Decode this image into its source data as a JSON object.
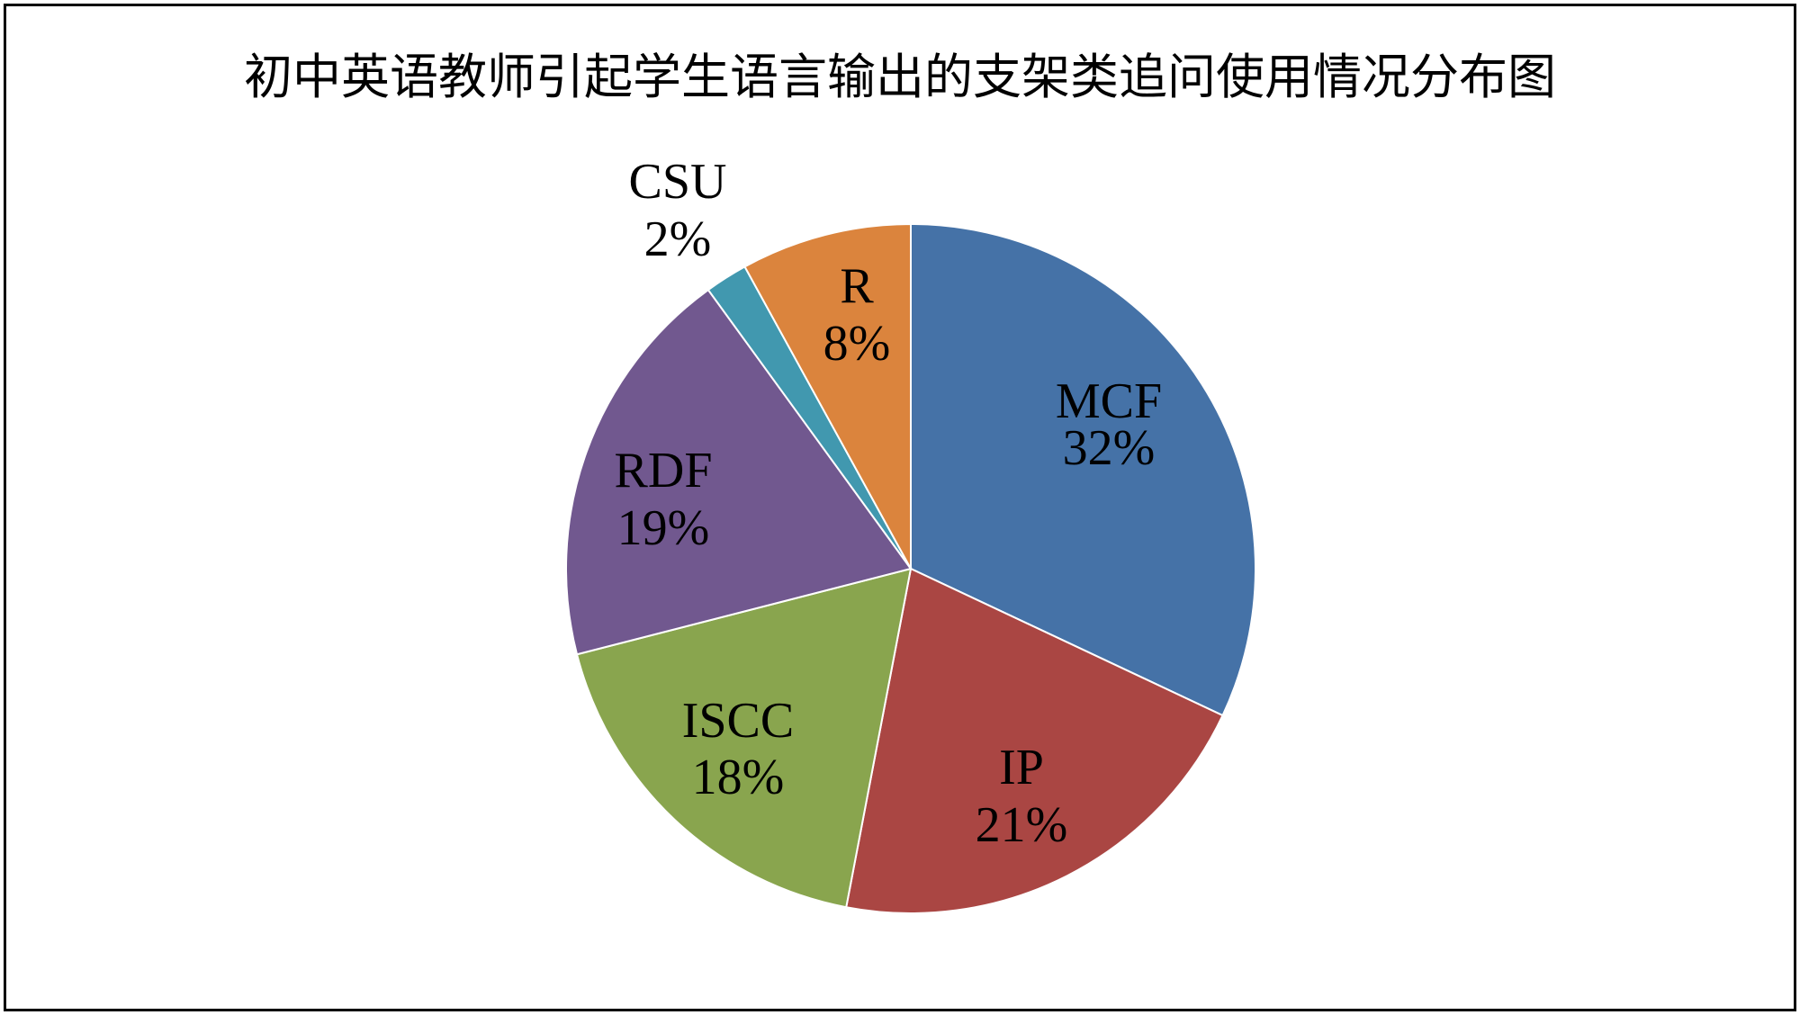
{
  "chart_data": {
    "type": "pie",
    "title": "初中英语教师引起学生语言输出的支架类追问使用情况分布图",
    "legend": "none",
    "start_angle_deg": 0,
    "direction": "clockwise",
    "slices": [
      {
        "name": "MCF",
        "value": 32,
        "label": "32%",
        "color": "#4572A7"
      },
      {
        "name": "IP",
        "value": 21,
        "label": "21%",
        "color": "#AA4643"
      },
      {
        "name": "ISCC",
        "value": 18,
        "label": "18%",
        "color": "#89A54E"
      },
      {
        "name": "RDF",
        "value": 19,
        "label": "19%",
        "color": "#71588F"
      },
      {
        "name": "CSU",
        "value": 2,
        "label": "2%",
        "color": "#4198AF"
      },
      {
        "name": "R",
        "value": 8,
        "label": "8%",
        "color": "#DB843D"
      }
    ]
  }
}
